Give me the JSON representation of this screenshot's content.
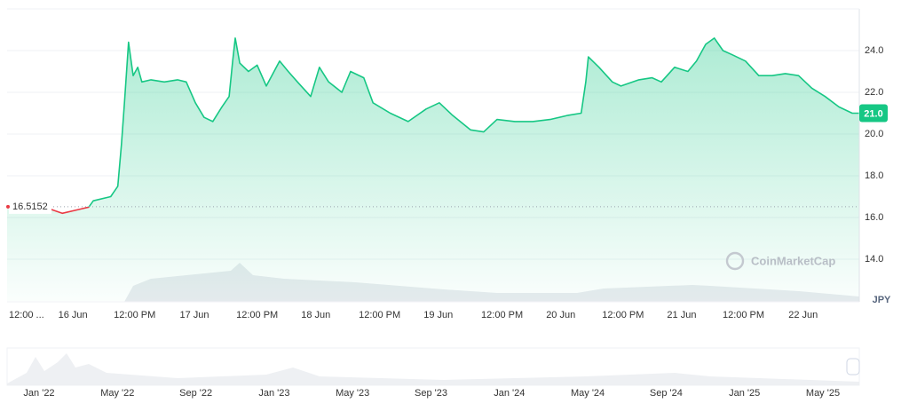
{
  "chart_data": {
    "type": "line",
    "unit": "JPY",
    "watermark": "CoinMarketCap",
    "color": "#16c784",
    "below_color": "#ea3943",
    "baseline": 16.5152,
    "current_price": 21.0,
    "current_price_label": "21.0",
    "xlim": [
      0,
      167
    ],
    "xticks": [
      {
        "value": 3.8,
        "label": "12:00 ..."
      },
      {
        "value": 12.9,
        "label": "16 Jun"
      },
      {
        "value": 25,
        "label": "12:00 PM"
      },
      {
        "value": 36.7,
        "label": "17 Jun"
      },
      {
        "value": 49,
        "label": "12:00 PM"
      },
      {
        "value": 60.5,
        "label": "18 Jun"
      },
      {
        "value": 73,
        "label": "12:00 PM"
      },
      {
        "value": 84.5,
        "label": "19 Jun"
      },
      {
        "value": 97,
        "label": "12:00 PM"
      },
      {
        "value": 108.5,
        "label": "20 Jun"
      },
      {
        "value": 120.7,
        "label": "12:00 PM"
      },
      {
        "value": 132.2,
        "label": "21 Jun"
      },
      {
        "value": 144.3,
        "label": "12:00 PM"
      },
      {
        "value": 156,
        "label": "22 Jun"
      }
    ],
    "ylim": [
      12,
      26
    ],
    "yticks": [
      {
        "value": 14,
        "label": "14.0"
      },
      {
        "value": 16,
        "label": "16.0"
      },
      {
        "value": 18,
        "label": "18.0"
      },
      {
        "value": 20,
        "label": "20.0"
      },
      {
        "value": 22,
        "label": "22.0"
      },
      {
        "value": 24,
        "label": "24.0"
      }
    ],
    "grid": true,
    "x": [
      0,
      3.8,
      7.3,
      10.8,
      14.3,
      16,
      16.9,
      20.3,
      21.7,
      22.4,
      23,
      23.8,
      24.7,
      25.6,
      26.4,
      28.2,
      30.8,
      33.4,
      35.1,
      36.9,
      38.6,
      40.3,
      42.1,
      43.5,
      44.2,
      44.7,
      45.6,
      47.3,
      49,
      50.8,
      53.4,
      55.1,
      56.9,
      59.5,
      61.2,
      63,
      65.6,
      67.3,
      69.9,
      71.7,
      75.1,
      78.6,
      82.1,
      84.7,
      87.3,
      90.8,
      93.4,
      96,
      99.5,
      103,
      106.4,
      109.9,
      112.5,
      113.4,
      113.9,
      116,
      118.6,
      120.3,
      123.8,
      126.4,
      128.2,
      130.8,
      133.4,
      135.1,
      136.9,
      138.6,
      140.3,
      142.1,
      144.7,
      147.3,
      149.9,
      152.5,
      155.1,
      157.7,
      160.3,
      163,
      165.6,
      167
    ],
    "values": [
      16.5,
      16.4,
      16.5,
      16.2,
      16.4,
      16.5,
      16.8,
      17.0,
      17.5,
      19.5,
      21.5,
      24.4,
      22.8,
      23.2,
      22.5,
      22.6,
      22.5,
      22.6,
      22.5,
      21.5,
      20.8,
      20.6,
      21.3,
      21.8,
      23.5,
      24.6,
      23.4,
      23.0,
      23.3,
      22.3,
      23.5,
      23.0,
      22.5,
      21.8,
      23.2,
      22.5,
      22.0,
      23.0,
      22.7,
      21.5,
      21.0,
      20.6,
      21.2,
      21.5,
      20.9,
      20.2,
      20.1,
      20.7,
      20.6,
      20.6,
      20.7,
      20.9,
      21.0,
      22.5,
      23.7,
      23.2,
      22.5,
      22.3,
      22.6,
      22.7,
      22.5,
      23.2,
      23.0,
      23.5,
      24.3,
      24.6,
      24.0,
      23.8,
      23.5,
      22.8,
      22.8,
      22.9,
      22.8,
      22.2,
      21.8,
      21.3,
      21.0,
      21.0
    ],
    "navigator_labels": [
      "Jan '22",
      "May '22",
      "Sep '22",
      "Jan '23",
      "May '23",
      "Sep '23",
      "Jan '24",
      "May '24",
      "Sep '24",
      "Jan '25",
      "May '25"
    ]
  }
}
